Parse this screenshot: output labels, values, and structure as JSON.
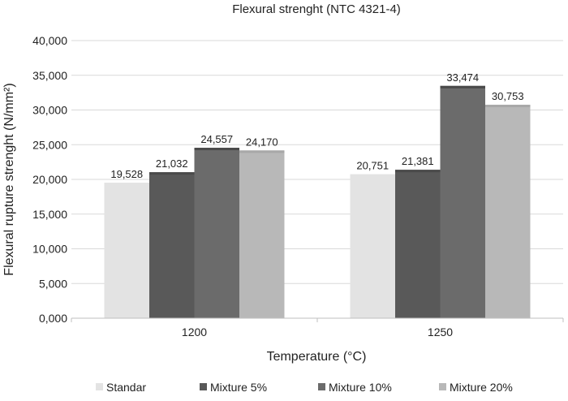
{
  "chart_data": {
    "type": "bar",
    "title": "Flexural strenght  (NTC 4321-4)",
    "xlabel": "Temperature (°C)",
    "ylabel": "Flexural rupture strenght (N/mm²)",
    "categories": [
      "1200",
      "1250"
    ],
    "series": [
      {
        "name": "Standar",
        "values": [
          19.528,
          20.751
        ],
        "labels": [
          "19,528",
          "20,751"
        ],
        "color": "#e3e3e3"
      },
      {
        "name": "Mixture 5%",
        "values": [
          21.032,
          21.381
        ],
        "labels": [
          "21,032",
          "21,381"
        ],
        "color": "#595959"
      },
      {
        "name": "Mixture 10%",
        "values": [
          24.557,
          33.474
        ],
        "labels": [
          "24,557",
          "33,474"
        ],
        "color": "#6b6b6b"
      },
      {
        "name": "Mixture 20%",
        "values": [
          24.17,
          30.753
        ],
        "labels": [
          "24,170",
          "30,753"
        ],
        "color": "#b8b8b8"
      }
    ],
    "ylim": [
      0,
      40
    ],
    "yticks": [
      "0,000",
      "5,000",
      "10,000",
      "15,000",
      "20,000",
      "25,000",
      "30,000",
      "35,000",
      "40,000"
    ],
    "grid": true,
    "legend": "bottom"
  }
}
